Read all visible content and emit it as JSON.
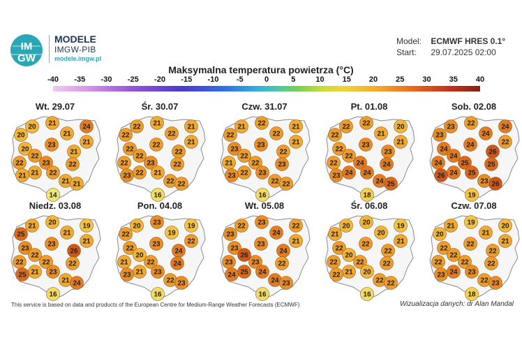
{
  "brand": {
    "name": "MODELE",
    "subtitle": "IMGW-PIB",
    "url": "modele.imgw.pl",
    "logo_text_top": "IM",
    "logo_text_bottom": "GW"
  },
  "meta": {
    "model_label": "Model:",
    "model_value": "ECMWF HRES 0.1°",
    "start_label": "Start:",
    "start_value": "29.07.2025 02:00"
  },
  "title": "Maksymalna temperatura powietrza (°C)",
  "legend": {
    "ticks": [
      "-40",
      "-35",
      "-30",
      "-25",
      "-20",
      "-15",
      "-10",
      "-5",
      "0",
      "5",
      "10",
      "15",
      "20",
      "25",
      "30",
      "35",
      "40"
    ]
  },
  "panels": [
    {
      "day": "Wt. 29.07",
      "values": [
        20,
        21,
        24,
        20,
        21,
        21,
        23,
        20,
        21,
        22,
        22,
        23,
        21,
        22,
        22,
        21,
        21,
        21,
        14
      ]
    },
    {
      "day": "Śr. 30.07",
      "values": [
        22,
        21,
        21,
        22,
        22,
        21,
        22,
        22,
        22,
        22,
        22,
        23,
        22,
        21,
        22,
        23,
        22,
        22,
        16
      ]
    },
    {
      "day": "Czw. 31.07",
      "values": [
        21,
        22,
        21,
        22,
        22,
        21,
        23,
        23,
        22,
        22,
        21,
        22,
        22,
        23,
        23,
        23,
        22,
        22,
        16
      ]
    },
    {
      "day": "Pt. 01.08",
      "values": [
        22,
        22,
        20,
        22,
        21,
        21,
        23,
        22,
        23,
        22,
        22,
        24,
        24,
        24,
        24,
        23,
        24,
        25,
        18
      ]
    },
    {
      "day": "Sob. 02.08",
      "values": [
        23,
        22,
        24,
        23,
        24,
        22,
        24,
        24,
        26,
        24,
        24,
        25,
        24,
        25,
        25,
        26,
        23,
        26,
        19
      ]
    },
    {
      "day": "Niedz. 03.08",
      "values": [
        21,
        20,
        19,
        25,
        21,
        21,
        23,
        23,
        26,
        22,
        22,
        22,
        21,
        23,
        22,
        25,
        21,
        24,
        16
      ]
    },
    {
      "day": "Pon. 04.08",
      "values": [
        20,
        23,
        19,
        22,
        19,
        22,
        23,
        22,
        24,
        20,
        21,
        22,
        21,
        23,
        24,
        23,
        22,
        23,
        16
      ]
    },
    {
      "day": "Wt. 05.08",
      "values": [
        22,
        23,
        22,
        23,
        24,
        21,
        23,
        23,
        24,
        26,
        23,
        23,
        25,
        24,
        22,
        24,
        24,
        23,
        16
      ]
    },
    {
      "day": "Śr. 06.08",
      "values": [
        20,
        20,
        19,
        21,
        20,
        21,
        22,
        22,
        22,
        20,
        22,
        22,
        21,
        20,
        22,
        22,
        22,
        22,
        16
      ]
    },
    {
      "day": "Czw. 07.08",
      "values": [
        21,
        19,
        20,
        20,
        21,
        21,
        22,
        22,
        22,
        22,
        22,
        22,
        24,
        23,
        22,
        23,
        22,
        23,
        18
      ]
    }
  ],
  "footer": {
    "left": "This service is based on data and products of the European Centre for Medium-Range Weather Forecasts (ECMWF)",
    "right": "Wizualizacja danych: dr Alan Mandal"
  }
}
